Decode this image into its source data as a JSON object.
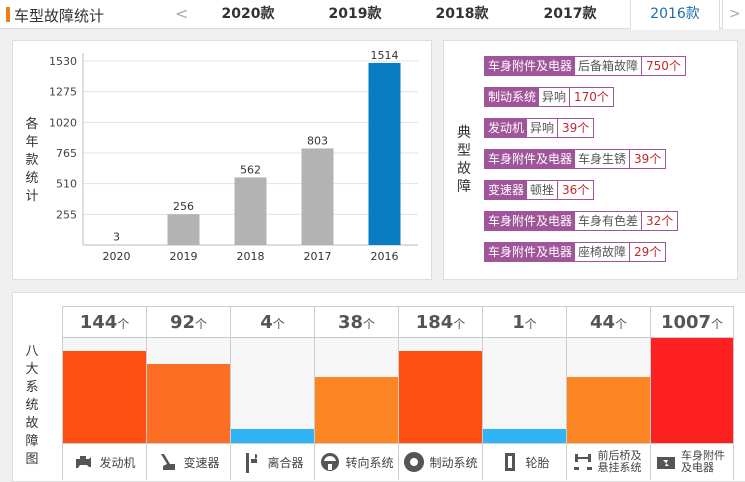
{
  "header": {
    "title": "车型故障统计",
    "prev": "<",
    "next": ">",
    "tabs": [
      "2020款",
      "2019款",
      "2018款",
      "2017款",
      "2016款"
    ],
    "active": 4
  },
  "chart_data": {
    "type": "bar",
    "ylabel": "各年款统计",
    "categories": [
      "2020",
      "2019",
      "2018",
      "2017",
      "2016"
    ],
    "values": [
      3,
      256,
      562,
      803,
      1514
    ],
    "yticks": [
      255,
      510,
      765,
      1020,
      1275,
      1530
    ],
    "ylim": [
      0,
      1530
    ],
    "highlight": "2016",
    "colors": {
      "normal": "#b3b3b3",
      "highlight": "#0a7cc4"
    }
  },
  "typical": {
    "label": "典型故障",
    "items": [
      {
        "cat": "车身附件及电器",
        "problem": "后备箱故障",
        "count": "750个"
      },
      {
        "cat": "制动系统",
        "problem": "异响",
        "count": "170个"
      },
      {
        "cat": "发动机",
        "problem": "异响",
        "count": "39个"
      },
      {
        "cat": "车身附件及电器",
        "problem": "车身生锈",
        "count": "39个"
      },
      {
        "cat": "变速器",
        "problem": "顿挫",
        "count": "36个"
      },
      {
        "cat": "车身附件及电器",
        "problem": "车身有色差",
        "count": "32个"
      },
      {
        "cat": "车身附件及电器",
        "problem": "座椅故障",
        "count": "29个"
      }
    ]
  },
  "systems": {
    "label": "八大系统故障图",
    "unit": "个",
    "items": [
      {
        "name": "发动机",
        "count": "144",
        "level": 0.88,
        "color": "#fd5012",
        "icon": "engine-icon"
      },
      {
        "name": "变速器",
        "count": "92",
        "level": 0.75,
        "color": "#fc6e23",
        "icon": "gear-shift-icon"
      },
      {
        "name": "离合器",
        "count": "4",
        "level": 0.13,
        "color": "#30b4f5",
        "icon": "clutch-icon"
      },
      {
        "name": "转向系统",
        "count": "38",
        "level": 0.63,
        "color": "#fc8623",
        "icon": "steering-wheel-icon"
      },
      {
        "name": "制动系统",
        "count": "184",
        "level": 0.88,
        "color": "#fd5012",
        "icon": "brake-disc-icon"
      },
      {
        "name": "轮胎",
        "count": "1",
        "level": 0.13,
        "color": "#30b4f5",
        "icon": "tire-icon"
      },
      {
        "name": "前后桥及悬挂系统",
        "count": "44",
        "level": 0.63,
        "color": "#fc8623",
        "icon": "suspension-icon"
      },
      {
        "name": "车身附件及电器",
        "count": "1007",
        "level": 1.0,
        "color": "#fd2020",
        "icon": "car-body-icon"
      }
    ]
  }
}
